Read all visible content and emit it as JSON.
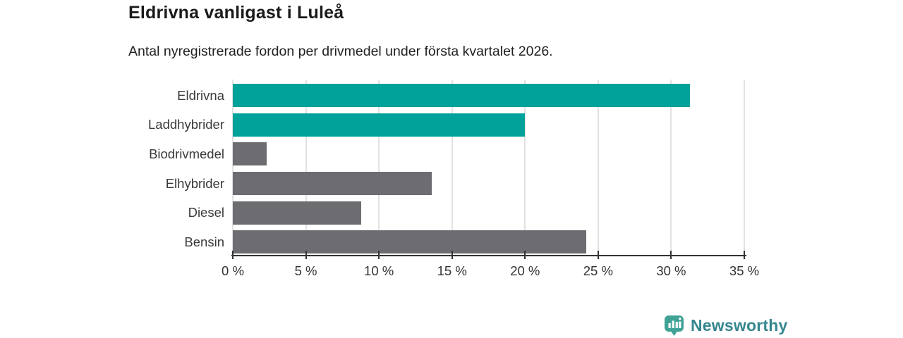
{
  "header": {
    "title": "Eldrivna vanligast i Luleå",
    "subtitle": "Antal nyregistrerade fordon per drivmedel under första kvartalet 2026."
  },
  "chart_data": {
    "type": "bar",
    "orientation": "horizontal",
    "title": "Eldrivna vanligast i Luleå",
    "subtitle": "Antal nyregistrerade fordon per drivmedel under första kvartalet 2026.",
    "categories": [
      "Eldrivna",
      "Laddhybrider",
      "Biodrivmedel",
      "Elhybrider",
      "Diesel",
      "Bensin"
    ],
    "values": [
      31.3,
      20.0,
      2.3,
      13.6,
      8.8,
      24.2
    ],
    "unit": "%",
    "bar_colors": [
      "#00a29a",
      "#00a29a",
      "#6d6c71",
      "#6d6c71",
      "#6d6c71",
      "#6d6c71"
    ],
    "accent_color": "#00a29a",
    "muted_color": "#6d6c71",
    "xlim": [
      0,
      35
    ],
    "x_tick_step": 5,
    "x_tick_labels": [
      "0 %",
      "5 %",
      "10 %",
      "15 %",
      "20 %",
      "25 %",
      "30 %",
      "35 %"
    ],
    "grid": true,
    "gridline_color": "#e2e2e2",
    "axis_color": "#333333",
    "legend": "none"
  },
  "footer": {
    "brand": "Newsworthy",
    "brand_color": "#35868e",
    "logo_color": "#3fa296",
    "logo_icon": "bar-chart-speech-bubble-icon"
  }
}
